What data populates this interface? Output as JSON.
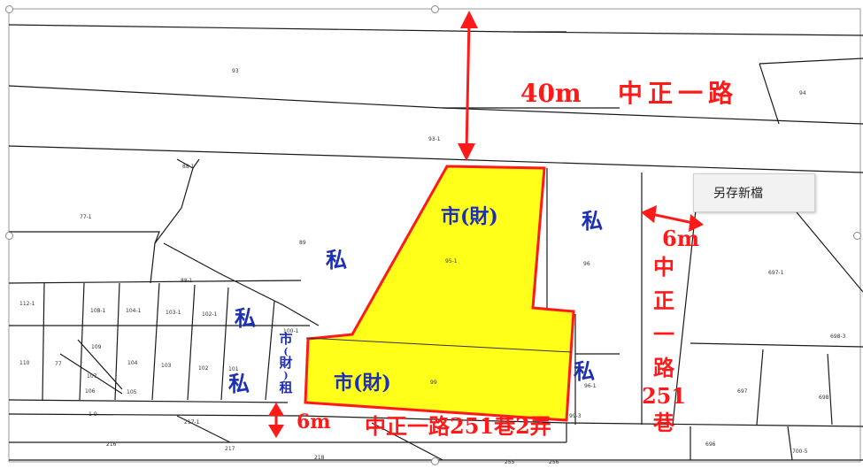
{
  "map": {
    "road_main": {
      "width": "40m",
      "name": "中正一路"
    },
    "road_east": {
      "width": "6m",
      "name_chars": [
        "中",
        "正",
        "一",
        "路",
        "251",
        "巷"
      ]
    },
    "road_south": {
      "width": "6m",
      "name": "中正一路251巷2弄"
    },
    "ownership": {
      "city_property": "市(財)",
      "private": "私",
      "city_leased_chars": [
        "市",
        "(",
        "財",
        ")",
        "租"
      ]
    },
    "parcel_numbers": [
      "93",
      "94",
      "93-1",
      "88-1",
      "77-1",
      "89",
      "95-1",
      "96",
      "697-1",
      "88-1",
      "112-1",
      "108-1",
      "104-1",
      "103-1",
      "102-1",
      "100-1",
      "698-3",
      "110",
      "77",
      "109",
      "104",
      "103",
      "102",
      "101",
      "107",
      "106",
      "105",
      "99",
      "96-1",
      "697",
      "698",
      "1-9",
      "217-1",
      "99-3",
      "216",
      "217",
      "218",
      "255",
      "256",
      "696",
      "700-5"
    ],
    "highlight_color": "#ffff1a",
    "boundary_color": "#ff1a1a"
  },
  "tooltip": {
    "label": "另存新檔"
  }
}
